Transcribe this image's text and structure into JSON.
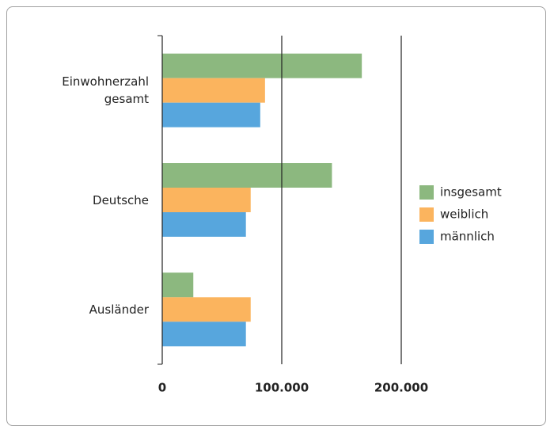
{
  "chart_data": {
    "type": "bar",
    "orientation": "horizontal",
    "categories": [
      "Einwohnerzahl gesamt",
      "Deutsche",
      "Ausländer"
    ],
    "series": [
      {
        "name": "insgesamt",
        "color": "#8cb87f",
        "values": [
          167000,
          142000,
          26000
        ]
      },
      {
        "name": "weiblich",
        "color": "#fbb45e",
        "values": [
          86000,
          74000,
          74000
        ]
      },
      {
        "name": "männlich",
        "color": "#57a6dd",
        "values": [
          82000,
          70000,
          70000
        ]
      }
    ],
    "xlim": [
      0,
      200000
    ],
    "xticks": [
      0,
      {
        "value": 100000,
        "label": "100.000"
      },
      {
        "value": 200000,
        "label": "200.000"
      }
    ],
    "grid": true,
    "legend": "right"
  }
}
